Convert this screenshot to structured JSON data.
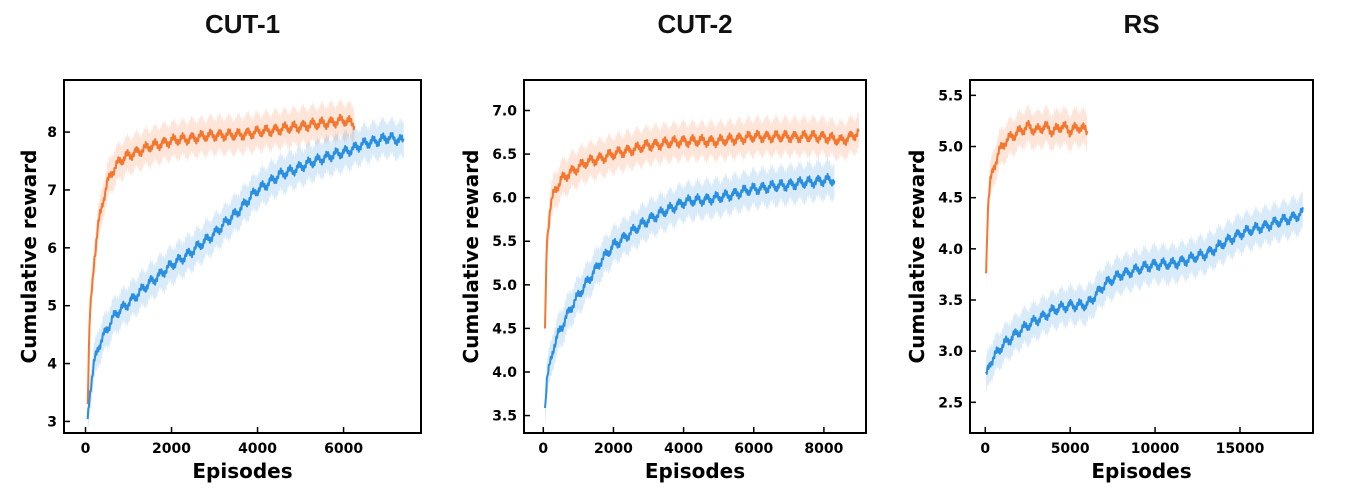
{
  "chart_data": [
    {
      "type": "line",
      "title": "CUT-1",
      "xlabel": "Episodes",
      "ylabel": "Cumulative reward",
      "xlim": [
        -500,
        7800
      ],
      "ylim": [
        2.8,
        8.9
      ],
      "xticks": [
        0,
        2000,
        4000,
        6000
      ],
      "yticks": [
        3,
        4,
        5,
        6,
        7,
        8
      ],
      "grid": false,
      "series": [
        {
          "color": "#f5762e",
          "x": [
            50,
            100,
            200,
            300,
            400,
            500,
            600,
            800,
            1000,
            1500,
            2000,
            2500,
            3000,
            3500,
            4000,
            4500,
            5000,
            5500,
            6000,
            6250
          ],
          "y": [
            3.3,
            4.8,
            5.8,
            6.4,
            6.8,
            7.1,
            7.3,
            7.5,
            7.6,
            7.75,
            7.85,
            7.9,
            7.95,
            7.95,
            8.0,
            8.05,
            8.1,
            8.15,
            8.2,
            8.15
          ]
        },
        {
          "color": "#2a8fe0",
          "x": [
            50,
            100,
            200,
            300,
            500,
            700,
            1000,
            1500,
            2000,
            2500,
            3000,
            3500,
            4000,
            4500,
            5000,
            5500,
            6000,
            6500,
            7000,
            7400
          ],
          "y": [
            3.05,
            3.5,
            4.0,
            4.3,
            4.6,
            4.85,
            5.05,
            5.4,
            5.7,
            5.95,
            6.25,
            6.6,
            7.0,
            7.25,
            7.4,
            7.55,
            7.65,
            7.8,
            7.9,
            7.85
          ]
        }
      ]
    },
    {
      "type": "line",
      "title": "CUT-2",
      "xlabel": "Episodes",
      "ylabel": "Cumulative reward",
      "xlim": [
        -550,
        9200
      ],
      "ylim": [
        3.3,
        7.35
      ],
      "xticks": [
        0,
        2000,
        4000,
        6000,
        8000
      ],
      "yticks": [
        3.5,
        4.0,
        4.5,
        5.0,
        5.5,
        6.0,
        6.5,
        7.0
      ],
      "grid": false,
      "series": [
        {
          "color": "#f5762e",
          "x": [
            50,
            100,
            200,
            300,
            500,
            800,
            1200,
            2000,
            3000,
            4000,
            5000,
            6000,
            7000,
            8000,
            8500,
            9000
          ],
          "y": [
            4.5,
            5.5,
            5.9,
            6.05,
            6.2,
            6.3,
            6.4,
            6.5,
            6.6,
            6.65,
            6.65,
            6.7,
            6.7,
            6.7,
            6.65,
            6.75
          ]
        },
        {
          "color": "#2a8fe0",
          "x": [
            50,
            100,
            300,
            500,
            800,
            1200,
            1600,
            2000,
            2500,
            3000,
            3500,
            4000,
            5000,
            6000,
            7000,
            8000,
            8300
          ],
          "y": [
            3.6,
            3.9,
            4.3,
            4.5,
            4.75,
            5.0,
            5.25,
            5.45,
            5.6,
            5.75,
            5.85,
            5.95,
            6.0,
            6.1,
            6.15,
            6.2,
            6.2
          ]
        }
      ]
    },
    {
      "type": "line",
      "title": "RS",
      "xlabel": "Episodes",
      "ylabel": "Cumulative reward",
      "xlim": [
        -900,
        19300
      ],
      "ylim": [
        2.2,
        5.65
      ],
      "xticks": [
        0,
        5000,
        10000,
        15000
      ],
      "yticks": [
        2.5,
        3.0,
        3.5,
        4.0,
        4.5,
        5.0,
        5.5
      ],
      "grid": false,
      "series": [
        {
          "color": "#f5762e",
          "x": [
            50,
            150,
            300,
            500,
            800,
            1200,
            1600,
            2000,
            2500,
            3000,
            3500,
            4000,
            4500,
            5000,
            5500,
            6000
          ],
          "y": [
            3.8,
            4.4,
            4.65,
            4.8,
            4.95,
            5.05,
            5.1,
            5.15,
            5.2,
            5.15,
            5.2,
            5.15,
            5.2,
            5.15,
            5.2,
            5.15
          ]
        },
        {
          "color": "#2a8fe0",
          "x": [
            50,
            300,
            1000,
            2000,
            3000,
            4000,
            5000,
            6000,
            7000,
            8000,
            9000,
            10000,
            11000,
            12000,
            13000,
            14000,
            15000,
            16000,
            17000,
            18000,
            18700
          ],
          "y": [
            2.75,
            2.9,
            3.05,
            3.2,
            3.3,
            3.4,
            3.45,
            3.45,
            3.65,
            3.75,
            3.8,
            3.85,
            3.85,
            3.9,
            3.95,
            4.05,
            4.15,
            4.2,
            4.25,
            4.3,
            4.35
          ]
        }
      ]
    }
  ]
}
